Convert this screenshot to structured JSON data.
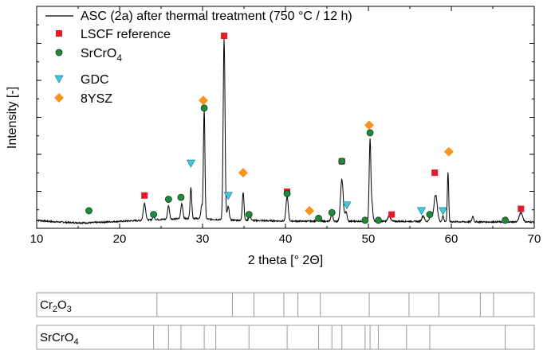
{
  "chart_data": {
    "type": "line",
    "xlabel": "2 theta [° 2Θ]",
    "ylabel": "Intensity [-]",
    "xlim": [
      10,
      70
    ],
    "x_ticks": [
      10,
      20,
      30,
      40,
      50,
      60,
      70
    ],
    "y_tick_labels_shown": false,
    "legend_placement": "top-left",
    "pattern": {
      "name": "ASC (2a) after thermal treatment (750 °C / 12 h)",
      "color": "#000000",
      "background": [
        [
          10,
          0.03
        ],
        [
          12,
          0.022
        ],
        [
          14,
          0.018
        ],
        [
          16,
          0.016
        ],
        [
          18,
          0.02
        ],
        [
          22,
          0.028
        ],
        [
          26,
          0.036
        ],
        [
          29,
          0.04
        ],
        [
          31,
          0.035
        ],
        [
          34,
          0.03
        ],
        [
          38,
          0.027
        ],
        [
          42,
          0.025
        ],
        [
          46,
          0.024
        ],
        [
          50,
          0.025
        ],
        [
          55,
          0.024
        ],
        [
          60,
          0.022
        ],
        [
          65,
          0.021
        ],
        [
          70,
          0.021
        ]
      ],
      "peaks": [
        {
          "x": 23.0,
          "h": 0.09,
          "w": 0.14
        },
        {
          "x": 24.1,
          "h": 0.02,
          "w": 0.12
        },
        {
          "x": 25.9,
          "h": 0.07,
          "w": 0.12
        },
        {
          "x": 27.5,
          "h": 0.08,
          "w": 0.12
        },
        {
          "x": 28.6,
          "h": 0.16,
          "w": 0.1
        },
        {
          "x": 29.9,
          "h": 0.07,
          "w": 0.1
        },
        {
          "x": 30.2,
          "h": 0.58,
          "w": 0.09
        },
        {
          "x": 32.6,
          "h": 0.95,
          "w": 0.11
        },
        {
          "x": 33.1,
          "h": 0.07,
          "w": 0.12
        },
        {
          "x": 34.9,
          "h": 0.15,
          "w": 0.1
        },
        {
          "x": 35.7,
          "h": 0.03,
          "w": 0.12
        },
        {
          "x": 40.2,
          "h": 0.13,
          "w": 0.13
        },
        {
          "x": 43.9,
          "h": 0.02,
          "w": 0.12
        },
        {
          "x": 45.6,
          "h": 0.04,
          "w": 0.12
        },
        {
          "x": 46.8,
          "h": 0.22,
          "w": 0.16
        },
        {
          "x": 47.3,
          "h": 0.05,
          "w": 0.12
        },
        {
          "x": 50.2,
          "h": 0.43,
          "w": 0.1
        },
        {
          "x": 50.45,
          "h": 0.08,
          "w": 0.1
        },
        {
          "x": 52.5,
          "h": 0.03,
          "w": 0.15
        },
        {
          "x": 56.6,
          "h": 0.03,
          "w": 0.15
        },
        {
          "x": 57.5,
          "h": 0.03,
          "w": 0.15
        },
        {
          "x": 58.1,
          "h": 0.14,
          "w": 0.2
        },
        {
          "x": 59.0,
          "h": 0.03,
          "w": 0.1
        },
        {
          "x": 59.6,
          "h": 0.26,
          "w": 0.08
        },
        {
          "x": 62.6,
          "h": 0.03,
          "w": 0.1
        },
        {
          "x": 66.5,
          "h": 0.02,
          "w": 0.15
        },
        {
          "x": 68.4,
          "h": 0.05,
          "w": 0.2
        }
      ]
    },
    "series": [
      {
        "name": "LSCF reference",
        "marker": "square",
        "color": "#e8192c",
        "points": [
          [
            23.0,
            0.16
          ],
          [
            32.6,
            1.0
          ],
          [
            40.2,
            0.18
          ],
          [
            46.8,
            0.34
          ],
          [
            52.8,
            0.06
          ],
          [
            58.0,
            0.28
          ],
          [
            68.4,
            0.09
          ]
        ]
      },
      {
        "name": "SrCrO4",
        "marker": "circle",
        "color": "#1f8a3b",
        "stroke": "#0b3d18",
        "points": [
          [
            16.3,
            0.08
          ],
          [
            24.1,
            0.06
          ],
          [
            25.9,
            0.14
          ],
          [
            27.4,
            0.15
          ],
          [
            30.2,
            0.62
          ],
          [
            35.6,
            0.06
          ],
          [
            40.2,
            0.17
          ],
          [
            44.0,
            0.04
          ],
          [
            45.6,
            0.07
          ],
          [
            46.8,
            0.34
          ],
          [
            49.6,
            0.03
          ],
          [
            50.2,
            0.49
          ],
          [
            51.2,
            0.03
          ],
          [
            57.4,
            0.06
          ],
          [
            66.5,
            0.03
          ]
        ]
      },
      {
        "name": "GDC",
        "marker": "triangle-down",
        "color": "#40c8e0",
        "points": [
          [
            28.6,
            0.33
          ],
          [
            33.1,
            0.16
          ],
          [
            47.4,
            0.11
          ],
          [
            56.4,
            0.08
          ],
          [
            59.0,
            0.08
          ]
        ]
      },
      {
        "name": "8YSZ",
        "marker": "diamond",
        "color": "#f7941d",
        "points": [
          [
            30.1,
            0.66
          ],
          [
            34.9,
            0.28
          ],
          [
            42.9,
            0.08
          ],
          [
            50.1,
            0.53
          ],
          [
            59.7,
            0.39
          ]
        ]
      }
    ],
    "reference_bars": [
      {
        "label": "Cr2O3",
        "label_main": "Cr",
        "label_sub1": "2",
        "label_mid": "O",
        "label_sub2": "3",
        "positions": [
          24.5,
          33.6,
          36.2,
          39.8,
          41.5,
          44.2,
          50.1,
          54.9,
          58.5,
          63.5,
          65.1
        ]
      },
      {
        "label": "SrCrO4",
        "label_main": "SrCrO",
        "label_sub1": "4",
        "label_mid": "",
        "label_sub2": "",
        "positions": [
          24.1,
          25.9,
          27.4,
          30.2,
          31.6,
          35.6,
          40.2,
          44.0,
          45.6,
          46.8,
          49.6,
          50.2,
          51.2,
          54.6,
          57.4,
          66.5
        ]
      }
    ]
  }
}
